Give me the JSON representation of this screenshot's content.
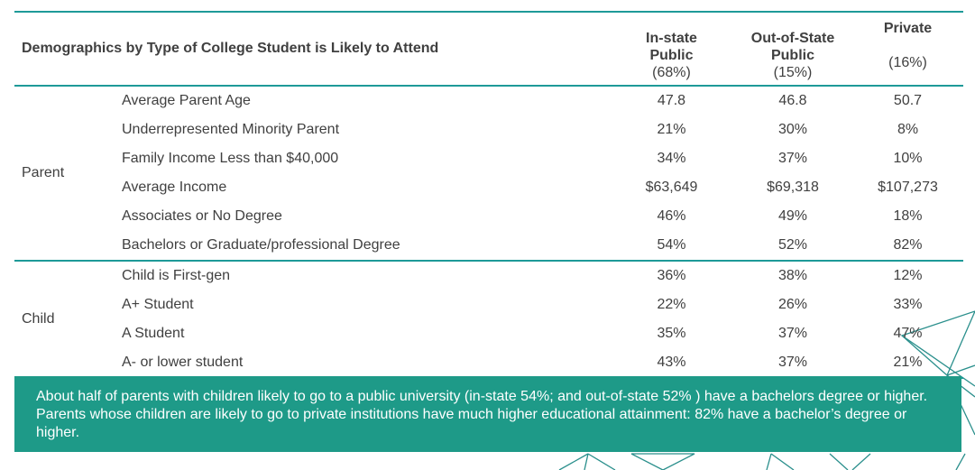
{
  "table": {
    "title": "Demographics by Type of College Student is Likely to Attend",
    "columns": [
      {
        "name_line1": "In-state",
        "name_line2": "Public",
        "share": "(68%)"
      },
      {
        "name_line1": "Out-of-State",
        "name_line2": "Public",
        "share": "(15%)"
      },
      {
        "name_line1": "Private",
        "name_line2": "",
        "share": "(16%)"
      }
    ],
    "groups": [
      {
        "name": "Parent",
        "rows": [
          {
            "label": "Average Parent Age",
            "values": [
              "47.8",
              "46.8",
              "50.7"
            ]
          },
          {
            "label": "Underrepresented Minority Parent",
            "values": [
              "21%",
              "30%",
              "8%"
            ]
          },
          {
            "label": "Family Income Less than $40,000",
            "values": [
              "34%",
              "37%",
              "10%"
            ]
          },
          {
            "label": "Average Income",
            "values": [
              "$63,649",
              "$69,318",
              "$107,273"
            ]
          },
          {
            "label": "Associates or No Degree",
            "values": [
              "46%",
              "49%",
              "18%"
            ]
          },
          {
            "label": "Bachelors or Graduate/professional Degree",
            "values": [
              "54%",
              "52%",
              "82%"
            ]
          }
        ]
      },
      {
        "name": "Child",
        "rows": [
          {
            "label": "Child is First-gen",
            "values": [
              "36%",
              "38%",
              "12%"
            ]
          },
          {
            "label": "A+ Student",
            "values": [
              "22%",
              "26%",
              "33%"
            ]
          },
          {
            "label": "A Student",
            "values": [
              "35%",
              "37%",
              "47%"
            ]
          },
          {
            "label": "A- or lower student",
            "values": [
              "43%",
              "37%",
              "21%"
            ]
          }
        ]
      }
    ]
  },
  "callout": {
    "text": "About half of parents with children likely to go to a public university (in-state 54%; and out-of-state 52% ) have a bachelors degree or higher. Parents whose children are likely to go to private institutions have much higher educational attainment: 82% have a bachelor’s degree or higher."
  },
  "colors": {
    "accent_teal": "#1e9a98",
    "callout_bg": "#1e9a88",
    "text": "#404040",
    "callout_text": "#ffffff"
  }
}
